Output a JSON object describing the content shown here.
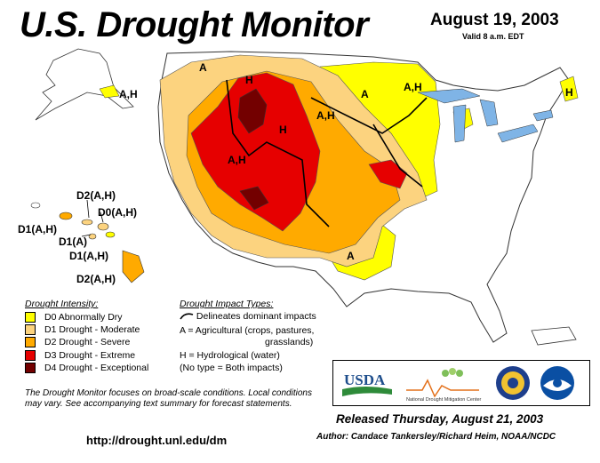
{
  "title": "U.S. Drought Monitor",
  "date": "August 19, 2003",
  "valid": "Valid 8 a.m. EDT",
  "map_labels": {
    "alaska": "A,H",
    "hi_1": "D2(A,H)",
    "hi_2": "D0(A,H)",
    "hi_3": "D1(A,H)",
    "hi_4": "D1(A)",
    "hi_5": "D1(A,H)",
    "hi_6": "D2(A,H)",
    "conus_a1": "A",
    "conus_h1": "H",
    "conus_h2": "H",
    "conus_ah1": "A,H",
    "conus_ah2": "A,H",
    "conus_a2": "A",
    "conus_ah3": "A,H",
    "conus_a3": "A",
    "conus_h3": "H"
  },
  "legend": {
    "title": "Drought Intensity:",
    "items": [
      {
        "label": "D0 Abnormally Dry",
        "color": "#ffff00"
      },
      {
        "label": "D1 Drought - Moderate",
        "color": "#fcd37f"
      },
      {
        "label": "D2 Drought - Severe",
        "color": "#ffaa00"
      },
      {
        "label": "D3 Drought - Extreme",
        "color": "#e60000"
      },
      {
        "label": "D4 Drought - Exceptional",
        "color": "#730000"
      }
    ]
  },
  "impacts": {
    "title": "Drought Impact Types:",
    "line1": "Delineates dominant impacts",
    "line2": "A = Agricultural (crops, pastures,",
    "line3": "grasslands)",
    "line4": "H = Hydrological (water)",
    "line5": "(No type = Both impacts)"
  },
  "note": "The Drought Monitor focuses on broad-scale conditions. Local conditions may vary.  See accompanying text summary for forecast statements.",
  "url": "http://drought.unl.edu/dm",
  "logos": {
    "usda": "USDA",
    "ndmc": "National Drought Mitigation Center"
  },
  "released": "Released Thursday, August 21, 2003",
  "author": "Author:  Candace Tankersley/Richard Heim, NOAA/NCDC"
}
